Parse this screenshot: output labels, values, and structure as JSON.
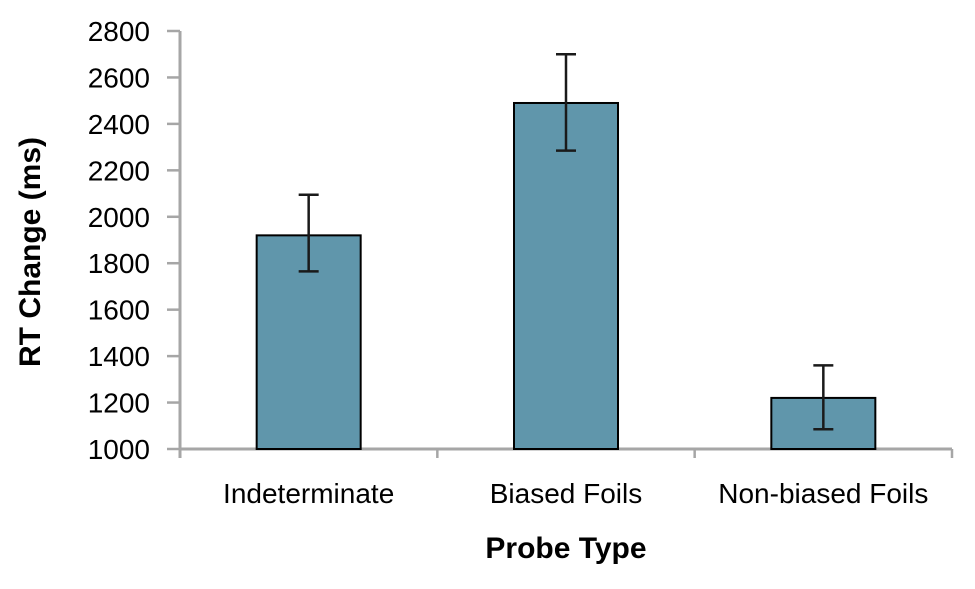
{
  "chart_data": {
    "type": "bar",
    "title": "",
    "xlabel": "Probe Type",
    "ylabel": "RT Change (ms)",
    "categories": [
      "Indeterminate",
      "Biased Foils",
      "Non-biased Foils"
    ],
    "values": [
      1920,
      2490,
      1220
    ],
    "error_low": [
      1765,
      2285,
      1085
    ],
    "error_high": [
      2095,
      2700,
      1360
    ],
    "ylim": [
      1000,
      2800
    ],
    "ytick_step": 200,
    "ytick_labels": [
      "1000",
      "1200",
      "1400",
      "1600",
      "1800",
      "2000",
      "2200",
      "2400",
      "2600",
      "2800"
    ],
    "grid": false,
    "legend": false,
    "colors": {
      "bar_fill": "#6096AB",
      "bar_border": "#000000",
      "error_bar": "#1a1a1a",
      "axis_line": "#A6A6A6",
      "text": "#000000",
      "background": "#FFFFFF"
    }
  }
}
